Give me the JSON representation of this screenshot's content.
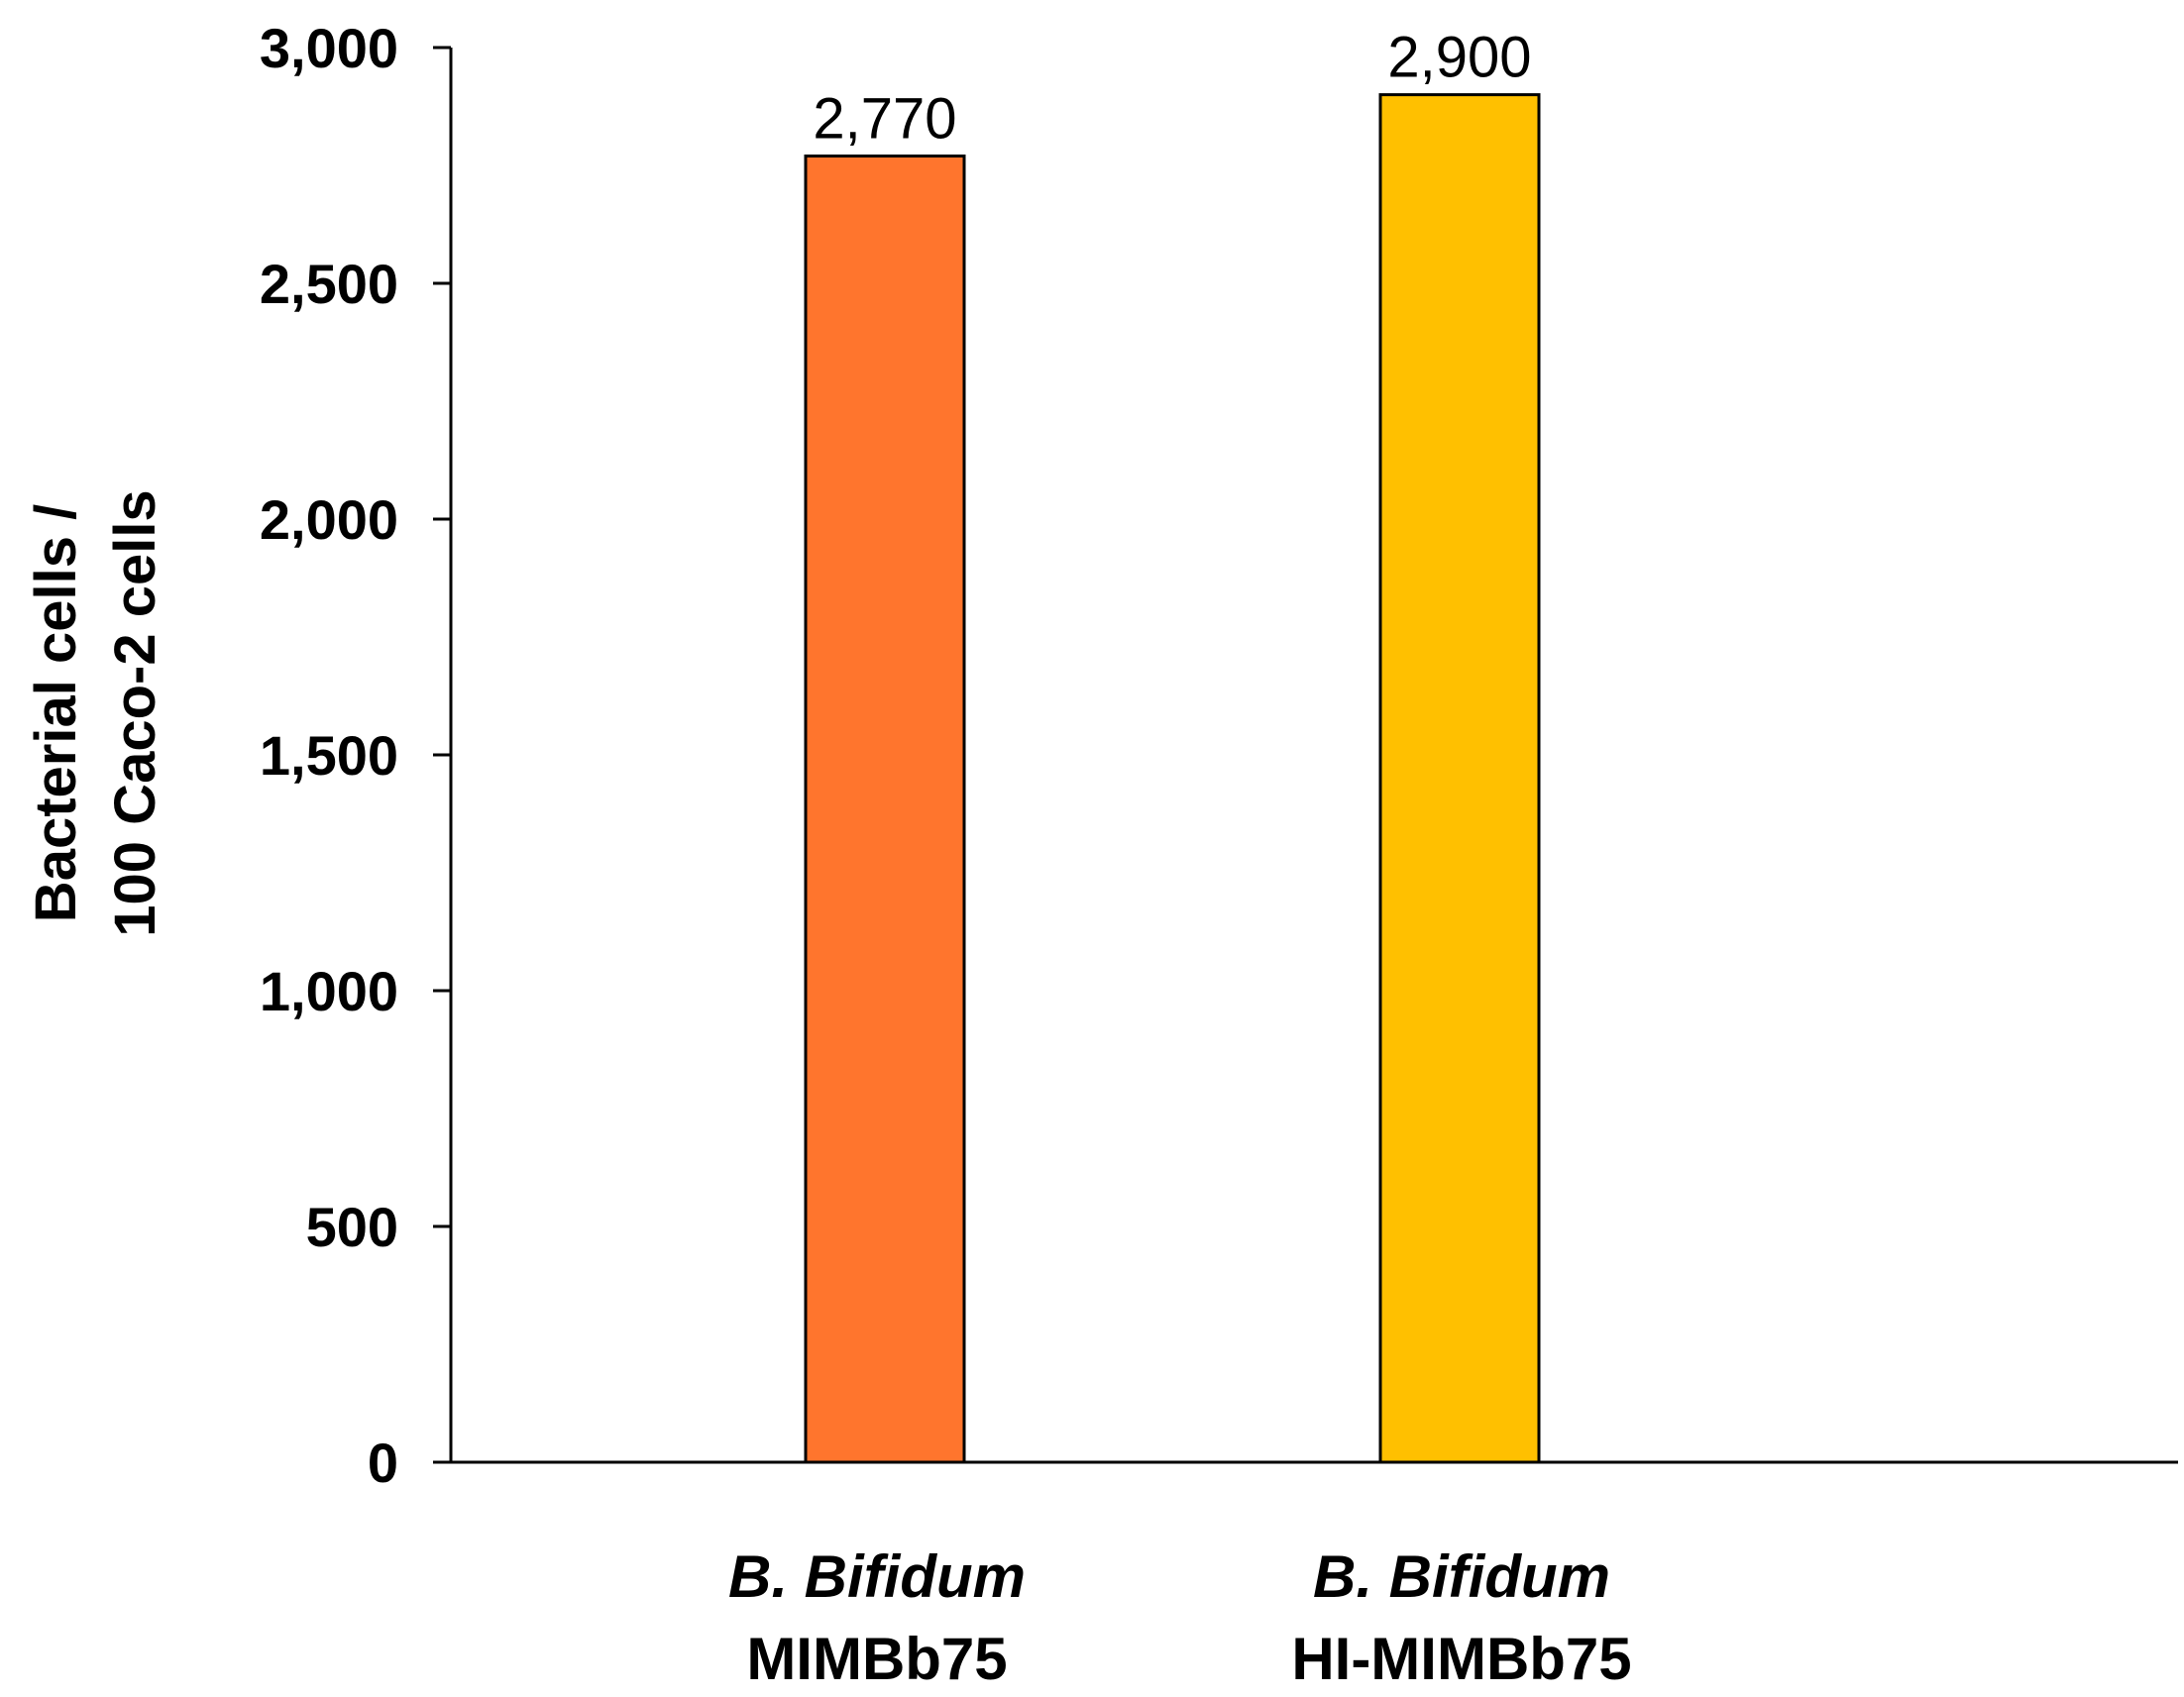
{
  "chart_data": {
    "type": "bar",
    "categories": [
      {
        "species": "B. Bifidum",
        "strain": "MIMBb75"
      },
      {
        "species": "B. Bifidum",
        "strain": "HI-MIMBb75"
      }
    ],
    "values": [
      2770,
      2900
    ],
    "data_labels": [
      "2,770",
      "2,900"
    ],
    "bar_colors": [
      "#FF752D",
      "#FFC000"
    ],
    "ylabel_lines": [
      "Bacterial cells /",
      "100 Caco-2 cells"
    ],
    "ylim": [
      0,
      3000
    ],
    "yticks": [
      0,
      500,
      1000,
      1500,
      2000,
      2500,
      3000
    ],
    "ytick_labels": [
      "0",
      "500",
      "1,000",
      "1,500",
      "2,000",
      "2,500",
      "3,000"
    ],
    "grid": false,
    "legend": false
  }
}
